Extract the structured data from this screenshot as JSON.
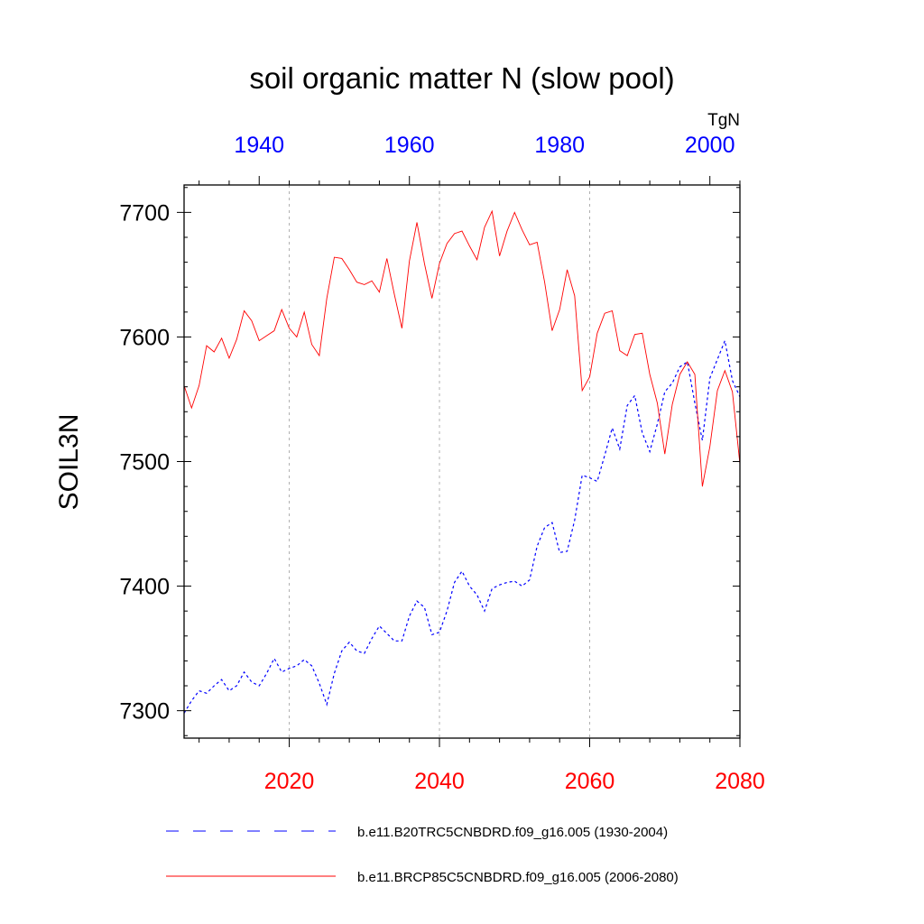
{
  "chart_data": {
    "type": "line",
    "title": "soil organic matter N (slow pool)",
    "ylabel": "SOIL3N",
    "units": "TgN",
    "ylim": [
      7278,
      7722
    ],
    "y_ticks": [
      7300,
      7400,
      7500,
      7600,
      7700
    ],
    "bottom_axis": {
      "xlim": [
        2006,
        2080
      ],
      "ticks": [
        2020,
        2040,
        2060,
        2080
      ],
      "color": "#ff0000"
    },
    "top_axis": {
      "xlim": [
        1930,
        2004
      ],
      "ticks": [
        1940,
        1960,
        1980,
        2000
      ],
      "color": "#0000ff"
    },
    "gridlines_x": [
      2020,
      2040,
      2060
    ],
    "legend_position": "bottom",
    "series": [
      {
        "name": "b.e11.B20TRC5CNBDRD.f09_g16.005 (1930-2004)",
        "axis": "top",
        "color": "#0000ff",
        "dash": "dashed",
        "x": [
          1930,
          1931,
          1932,
          1933,
          1934,
          1935,
          1936,
          1937,
          1938,
          1939,
          1940,
          1941,
          1942,
          1943,
          1944,
          1945,
          1946,
          1947,
          1948,
          1949,
          1950,
          1951,
          1952,
          1953,
          1954,
          1955,
          1956,
          1957,
          1958,
          1959,
          1960,
          1961,
          1962,
          1963,
          1964,
          1965,
          1966,
          1967,
          1968,
          1969,
          1970,
          1971,
          1972,
          1973,
          1974,
          1975,
          1976,
          1977,
          1978,
          1979,
          1980,
          1981,
          1982,
          1983,
          1984,
          1985,
          1986,
          1987,
          1988,
          1989,
          1990,
          1991,
          1992,
          1993,
          1994,
          1995,
          1996,
          1997,
          1998,
          1999,
          2000,
          2001,
          2002,
          2003,
          2004
        ],
        "values": [
          7298,
          7308,
          7316,
          7314,
          7320,
          7325,
          7316,
          7320,
          7331,
          7323,
          7320,
          7330,
          7342,
          7331,
          7334,
          7336,
          7341,
          7336,
          7322,
          7305,
          7330,
          7348,
          7355,
          7348,
          7346,
          7358,
          7368,
          7362,
          7356,
          7356,
          7376,
          7388,
          7383,
          7361,
          7363,
          7380,
          7403,
          7412,
          7400,
          7393,
          7380,
          7398,
          7401,
          7403,
          7404,
          7400,
          7405,
          7432,
          7447,
          7451,
          7427,
          7428,
          7453,
          7489,
          7487,
          7484,
          7505,
          7527,
          7510,
          7545,
          7553,
          7523,
          7508,
          7530,
          7556,
          7563,
          7576,
          7580,
          7547,
          7517,
          7567,
          7582,
          7597,
          7565,
          7552
        ]
      },
      {
        "name": "b.e11.BRCP85C5CNBDRD.f09_g16.005 (2006-2080)",
        "axis": "bottom",
        "color": "#ff0000",
        "dash": "solid",
        "x": [
          2006,
          2007,
          2008,
          2009,
          2010,
          2011,
          2012,
          2013,
          2014,
          2015,
          2016,
          2017,
          2018,
          2019,
          2020,
          2021,
          2022,
          2023,
          2024,
          2025,
          2026,
          2027,
          2028,
          2029,
          2030,
          2031,
          2032,
          2033,
          2034,
          2035,
          2036,
          2037,
          2038,
          2039,
          2040,
          2041,
          2042,
          2043,
          2044,
          2045,
          2046,
          2047,
          2048,
          2049,
          2050,
          2051,
          2052,
          2053,
          2054,
          2055,
          2056,
          2057,
          2058,
          2059,
          2060,
          2061,
          2062,
          2063,
          2064,
          2065,
          2066,
          2067,
          2068,
          2069,
          2070,
          2071,
          2072,
          2073,
          2074,
          2075,
          2076,
          2077,
          2078,
          2079,
          2080
        ],
        "values": [
          7561,
          7543,
          7561,
          7593,
          7588,
          7599,
          7583,
          7598,
          7621,
          7613,
          7597,
          7601,
          7605,
          7622,
          7607,
          7600,
          7620,
          7594,
          7585,
          7631,
          7664,
          7663,
          7654,
          7644,
          7642,
          7645,
          7636,
          7663,
          7634,
          7607,
          7661,
          7692,
          7659,
          7631,
          7659,
          7675,
          7683,
          7685,
          7673,
          7662,
          7688,
          7701,
          7665,
          7685,
          7700,
          7686,
          7674,
          7676,
          7644,
          7605,
          7622,
          7654,
          7633,
          7557,
          7568,
          7603,
          7619,
          7621,
          7589,
          7585,
          7602,
          7603,
          7570,
          7547,
          7506,
          7546,
          7570,
          7580,
          7570,
          7480,
          7512,
          7557,
          7573,
          7556,
          7498
        ]
      }
    ]
  }
}
